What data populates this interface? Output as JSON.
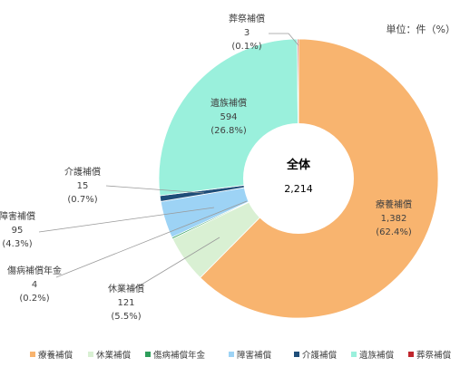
{
  "chart_data": {
    "type": "pie",
    "donut": true,
    "unit_label": "単位：件（%）",
    "center": {
      "title": "全体",
      "total": "2,214"
    },
    "slices": [
      {
        "name": "療養補償",
        "value": 1382,
        "value_label": "1,382",
        "percent_label": "(62.4%)",
        "color": "#F8B46F"
      },
      {
        "name": "休業補償",
        "value": 121,
        "value_label": "121",
        "percent_label": "(5.5%)",
        "color": "#D9F0D3"
      },
      {
        "name": "傷病補償年金",
        "value": 4,
        "value_label": "4",
        "percent_label": "(0.2%)",
        "color": "#2E9E5B"
      },
      {
        "name": "障害補償",
        "value": 95,
        "value_label": "95",
        "percent_label": "(4.3%)",
        "color": "#9DD3F5"
      },
      {
        "name": "介護補償",
        "value": 15,
        "value_label": "15",
        "percent_label": "(0.7%)",
        "color": "#1F4E79"
      },
      {
        "name": "遺族補償",
        "value": 594,
        "value_label": "594",
        "percent_label": "(26.8%)",
        "color": "#9AF0DC"
      },
      {
        "name": "葬祭補償",
        "value": 3,
        "value_label": "3",
        "percent_label": "(0.1%)",
        "color": "#C0262D"
      }
    ],
    "legend_position": "bottom"
  }
}
